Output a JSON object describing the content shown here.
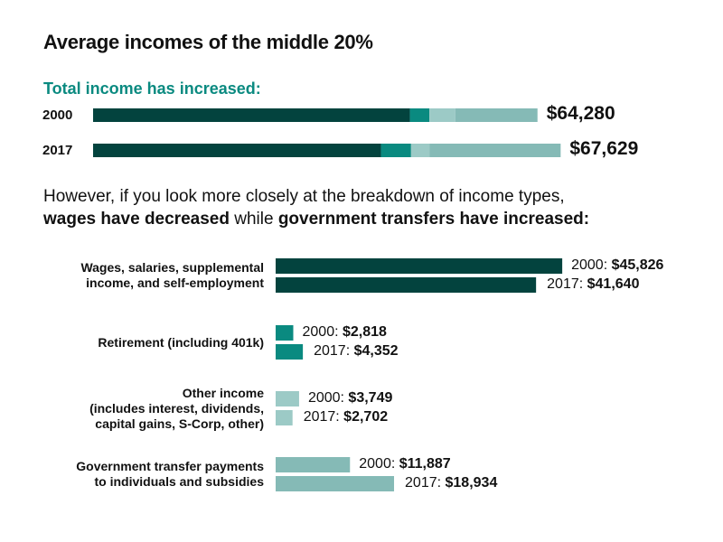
{
  "title": "Average incomes of the middle 20%",
  "subtitle": "Total income has increased:",
  "paragraph": {
    "line1": "However, if you look more closely at the breakdown of income types,",
    "bold1": "wages have decreased",
    "mid": " while ",
    "bold2": "government transfers have increased:"
  },
  "colors": {
    "wages": "#03433e",
    "retirement": "#0a8a80",
    "other": "#9ccac6",
    "government": "#85bab6"
  },
  "chart_data": [
    {
      "type": "bar",
      "stacked": true,
      "orientation": "horizontal",
      "categories": [
        "2000",
        "2017"
      ],
      "series": [
        {
          "key": "wages",
          "values": [
            45826,
            41640
          ]
        },
        {
          "key": "retirement",
          "values": [
            2818,
            4352
          ]
        },
        {
          "key": "other",
          "values": [
            3749,
            2702
          ]
        },
        {
          "key": "government",
          "values": [
            11887,
            18934
          ]
        }
      ],
      "totals": [
        "$64,280",
        "$67,629"
      ]
    },
    {
      "type": "bar",
      "orientation": "horizontal",
      "categories": [
        "Wages, salaries, supplemental income, and self-employment",
        "Retirement (including 401k)",
        "Other income (includes interest, dividends, capital gains, S-Corp, other)",
        "Government transfer payments to individuals and subsidies"
      ],
      "category_lines": [
        [
          "Wages, salaries, supplemental",
          "income, and self-employment"
        ],
        [
          "Retirement (including 401k)"
        ],
        [
          "Other income",
          "(includes interest, dividends,",
          "capital gains, S-Corp, other)"
        ],
        [
          "Government transfer payments",
          "to individuals and subsidies"
        ]
      ],
      "keys": [
        "wages",
        "retirement",
        "other",
        "government"
      ],
      "years": [
        "2000",
        "2017"
      ],
      "values": [
        [
          45826,
          41640
        ],
        [
          2818,
          4352
        ],
        [
          3749,
          2702
        ],
        [
          11887,
          18934
        ]
      ],
      "labels": [
        [
          "$45,826",
          "$41,640"
        ],
        [
          "$2,818",
          "$4,352"
        ],
        [
          "$3,749",
          "$2,702"
        ],
        [
          "$11,887",
          "$18,934"
        ]
      ]
    }
  ]
}
